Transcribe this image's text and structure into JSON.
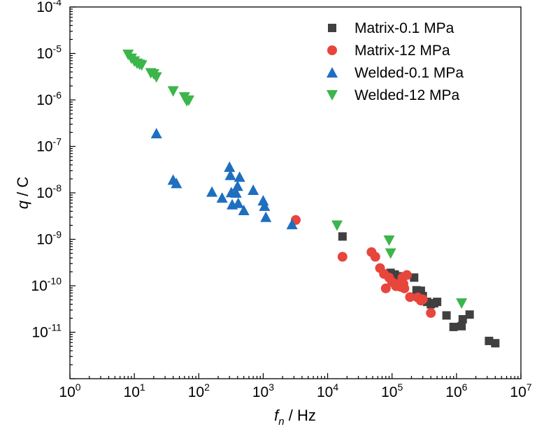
{
  "chart_data": {
    "type": "scatter",
    "xscale": "log",
    "yscale": "log",
    "xlim": [
      1,
      10000000
    ],
    "ylim": [
      1e-12,
      0.0001
    ],
    "xlabel_var": "f",
    "xlabel_sub": "n",
    "xlabel_unit": " / Hz",
    "ylabel_var": "q",
    "ylabel_unit": " / C",
    "x_ticks": [
      {
        "base": "10",
        "exp": "0",
        "value": 1
      },
      {
        "base": "10",
        "exp": "1",
        "value": 10
      },
      {
        "base": "10",
        "exp": "2",
        "value": 100
      },
      {
        "base": "10",
        "exp": "3",
        "value": 1000
      },
      {
        "base": "10",
        "exp": "4",
        "value": 10000
      },
      {
        "base": "10",
        "exp": "5",
        "value": 100000
      },
      {
        "base": "10",
        "exp": "6",
        "value": 1000000
      },
      {
        "base": "10",
        "exp": "7",
        "value": 10000000
      }
    ],
    "y_ticks": [
      {
        "base": "10",
        "exp": "-11",
        "value": 1e-11
      },
      {
        "base": "10",
        "exp": "-10",
        "value": 1e-10
      },
      {
        "base": "10",
        "exp": "-9",
        "value": 1e-09
      },
      {
        "base": "10",
        "exp": "-8",
        "value": 1e-08
      },
      {
        "base": "10",
        "exp": "-7",
        "value": 1e-07
      },
      {
        "base": "10",
        "exp": "-6",
        "value": 1e-06
      },
      {
        "base": "10",
        "exp": "-5",
        "value": 1e-05
      },
      {
        "base": "10",
        "exp": "-4",
        "value": 0.0001
      }
    ],
    "grid": false,
    "legend_position": "top-right",
    "series": [
      {
        "name": "Matrix-0.1 MPa",
        "marker": "square",
        "color": "#404040",
        "points": [
          [
            17000,
            1.15e-09
          ],
          [
            95000,
            1.9e-10
          ],
          [
            110000,
            1.75e-10
          ],
          [
            125000,
            1.6e-10
          ],
          [
            220000,
            1.5e-10
          ],
          [
            240000,
            8e-11
          ],
          [
            280000,
            7.8e-11
          ],
          [
            300000,
            6e-11
          ],
          [
            350000,
            4.5e-11
          ],
          [
            400000,
            4e-11
          ],
          [
            450000,
            4.2e-11
          ],
          [
            500000,
            4.5e-11
          ],
          [
            700000,
            2.3e-11
          ],
          [
            900000,
            1.3e-11
          ],
          [
            1200000,
            1.35e-11
          ],
          [
            1250000,
            1.9e-11
          ],
          [
            1600000,
            2.4e-11
          ],
          [
            3200000,
            6.5e-12
          ],
          [
            4000000,
            5.8e-12
          ]
        ]
      },
      {
        "name": "Matrix-12 MPa",
        "marker": "circle",
        "color": "#e8453c",
        "points": [
          [
            3200,
            2.6e-09
          ],
          [
            17000,
            4.2e-10
          ],
          [
            48000,
            5.3e-10
          ],
          [
            55000,
            4.2e-10
          ],
          [
            65000,
            2.4e-10
          ],
          [
            75000,
            1.8e-10
          ],
          [
            80000,
            8.8e-11
          ],
          [
            90000,
            1.5e-10
          ],
          [
            100000,
            1.2e-10
          ],
          [
            115000,
            9.8e-11
          ],
          [
            125000,
            1.1e-10
          ],
          [
            135000,
            9.5e-11
          ],
          [
            145000,
            1.5e-10
          ],
          [
            150000,
            1.1e-10
          ],
          [
            155000,
            8.8e-11
          ],
          [
            170000,
            1.7e-10
          ],
          [
            190000,
            5.7e-11
          ],
          [
            250000,
            5.6e-11
          ],
          [
            280000,
            4.8e-11
          ],
          [
            300000,
            5.1e-11
          ],
          [
            400000,
            2.6e-11
          ]
        ]
      },
      {
        "name": "Welded-0.1 MPa",
        "marker": "triangle-up",
        "color": "#1f6fbf",
        "points": [
          [
            22,
            1.9e-07
          ],
          [
            40,
            1.9e-08
          ],
          [
            45,
            1.6e-08
          ],
          [
            160,
            1.05e-08
          ],
          [
            230,
            7.8e-09
          ],
          [
            300,
            3.6e-08
          ],
          [
            310,
            2.4e-08
          ],
          [
            320,
            1.02e-08
          ],
          [
            330,
            5.6e-09
          ],
          [
            380,
            1e-08
          ],
          [
            400,
            1.4e-08
          ],
          [
            410,
            6e-09
          ],
          [
            430,
            2.2e-08
          ],
          [
            500,
            4.2e-09
          ],
          [
            700,
            1.15e-08
          ],
          [
            1000,
            6.8e-09
          ],
          [
            1050,
            5.2e-09
          ],
          [
            1100,
            3e-09
          ],
          [
            2800,
            2.1e-09
          ]
        ]
      },
      {
        "name": "Welded-12 MPa",
        "marker": "triangle-down",
        "color": "#3cb54a",
        "points": [
          [
            8,
            9.5e-06
          ],
          [
            9,
            7.8e-06
          ],
          [
            10,
            6.8e-06
          ],
          [
            11,
            6.1e-06
          ],
          [
            12,
            5.8e-06
          ],
          [
            13,
            5.6e-06
          ],
          [
            18,
            3.8e-06
          ],
          [
            20,
            3.6e-06
          ],
          [
            22,
            3.1e-06
          ],
          [
            40,
            1.55e-06
          ],
          [
            60,
            1.15e-06
          ],
          [
            65,
            9.5e-07
          ],
          [
            70,
            9.8e-07
          ],
          [
            14000,
            2e-09
          ],
          [
            90000,
            9.5e-10
          ],
          [
            95000,
            5e-10
          ],
          [
            1200000,
            4.2e-11
          ]
        ]
      }
    ]
  }
}
